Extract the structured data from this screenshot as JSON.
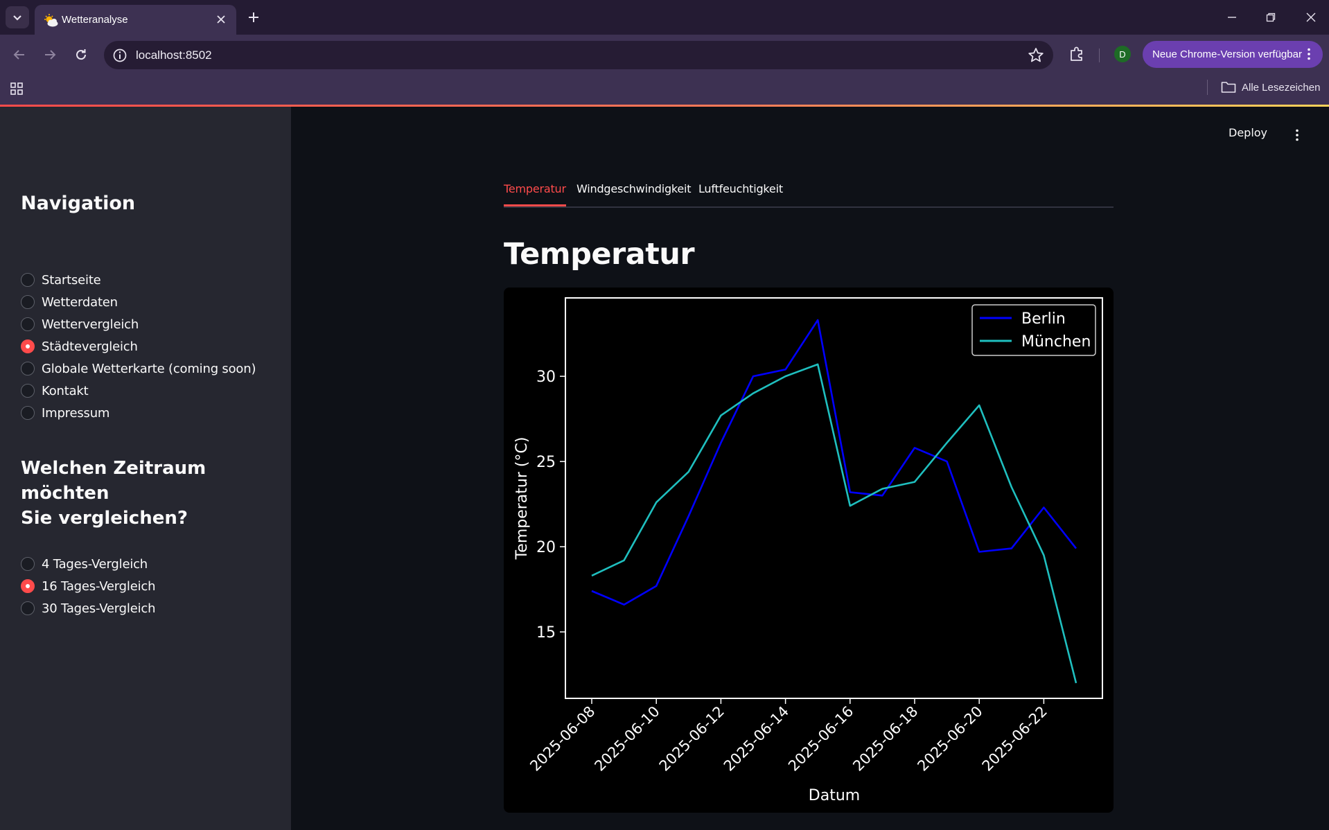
{
  "browser": {
    "tab_title": "Wetteranalyse",
    "url": "localhost:8502",
    "profile_initial": "D",
    "update_button": "Neue Chrome-Version verfügbar",
    "all_bookmarks": "Alle Lesezeichen",
    "icons": [
      "tabs-dropdown-icon",
      "weather-favicon",
      "close-icon",
      "plus-icon",
      "minimize-icon",
      "restore-icon",
      "window-close-icon",
      "back-icon",
      "forward-icon",
      "reload-icon",
      "site-info-icon",
      "star-icon",
      "extensions-icon",
      "kebab-icon",
      "apps-grid-icon",
      "folder-icon"
    ]
  },
  "app": {
    "deploy_label": "Deploy",
    "accent": "#ff4b4b",
    "sidebar": {
      "nav_heading": "Navigation",
      "nav_items": [
        {
          "label": "Startseite",
          "selected": false
        },
        {
          "label": "Wetterdaten",
          "selected": false
        },
        {
          "label": "Wettervergleich",
          "selected": false
        },
        {
          "label": "Städtevergleich",
          "selected": true
        },
        {
          "label": "Globale Wetterkarte (coming soon)",
          "selected": false
        },
        {
          "label": "Kontakt",
          "selected": false
        },
        {
          "label": "Impressum",
          "selected": false
        }
      ],
      "period_heading_line1": "Welchen Zeitraum möchten",
      "period_heading_line2": "Sie vergleichen?",
      "period_items": [
        {
          "label": "4 Tages-Vergleich",
          "selected": false
        },
        {
          "label": "16 Tages-Vergleich",
          "selected": true
        },
        {
          "label": "30 Tages-Vergleich",
          "selected": false
        }
      ]
    },
    "tabs": [
      {
        "label": "Temperatur",
        "active": true
      },
      {
        "label": "Windgeschwindigkeit",
        "active": false
      },
      {
        "label": "Luftfeuchtigkeit",
        "active": false
      }
    ],
    "title": "Temperatur"
  },
  "chart_data": {
    "type": "line",
    "xlabel": "Datum",
    "ylabel": "Temperatur (°C)",
    "x": [
      "2025-06-08",
      "2025-06-09",
      "2025-06-10",
      "2025-06-11",
      "2025-06-12",
      "2025-06-13",
      "2025-06-14",
      "2025-06-15",
      "2025-06-16",
      "2025-06-17",
      "2025-06-18",
      "2025-06-19",
      "2025-06-20",
      "2025-06-21",
      "2025-06-22",
      "2025-06-23"
    ],
    "xticks": [
      "2025-06-08",
      "2025-06-10",
      "2025-06-12",
      "2025-06-14",
      "2025-06-16",
      "2025-06-18",
      "2025-06-20",
      "2025-06-22"
    ],
    "yticks": [
      15,
      20,
      25,
      30
    ],
    "ylim": [
      11.1,
      34.6
    ],
    "legend_position": "upper right",
    "grid": false,
    "series": [
      {
        "name": "Berlin",
        "color": "#0000ff",
        "values": [
          17.4,
          16.6,
          17.7,
          21.8,
          26.1,
          30.0,
          30.4,
          33.3,
          23.2,
          23.0,
          25.8,
          25.0,
          19.7,
          19.9,
          22.3,
          19.9
        ]
      },
      {
        "name": "München",
        "color": "#1fbfbf",
        "values": [
          18.3,
          19.2,
          22.6,
          24.4,
          27.7,
          29.0,
          30.0,
          30.7,
          22.4,
          23.4,
          23.8,
          26.1,
          28.3,
          23.5,
          19.5,
          12.0
        ]
      }
    ]
  }
}
